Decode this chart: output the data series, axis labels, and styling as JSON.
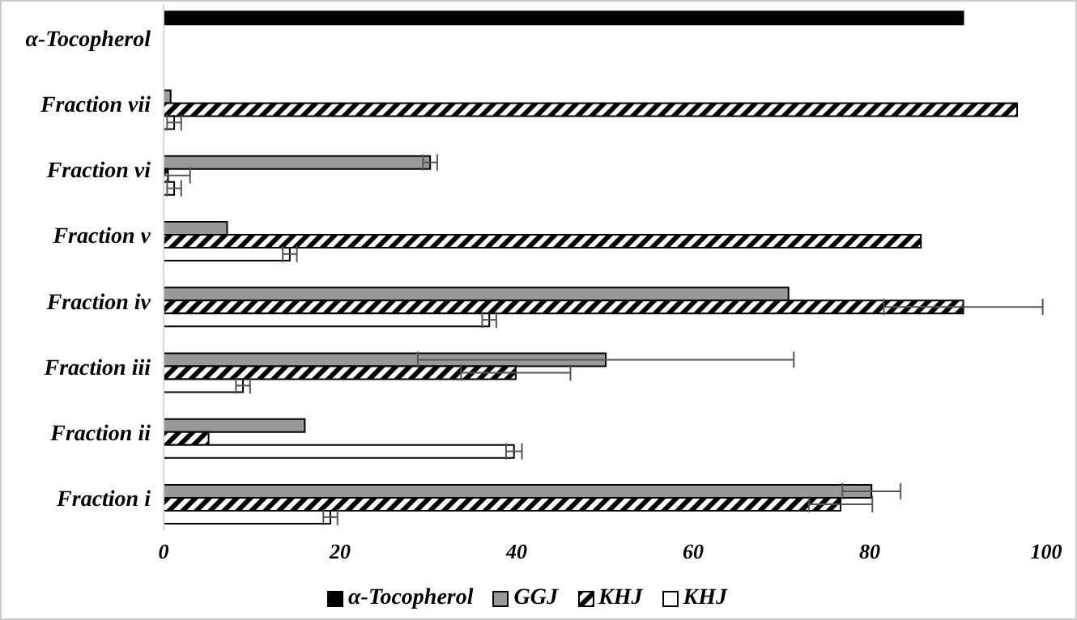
{
  "chart_data": {
    "type": "bar",
    "orientation": "horizontal",
    "categories": [
      "α-Tocopherol",
      "Fraction vii",
      "Fraction vi",
      "Fraction v",
      "Fraction iv",
      "Fraction iii",
      "Fraction ii",
      "Fraction i"
    ],
    "series": [
      {
        "name": "α-Tocopherol",
        "color": "#000000",
        "values": [
          90.6,
          null,
          null,
          null,
          null,
          null,
          null,
          null
        ]
      },
      {
        "name": "GGJ",
        "color": "#999999",
        "values": [
          null,
          0.8,
          30.2,
          7.2,
          70.8,
          50.1,
          16.0,
          80.2
        ],
        "errors": [
          null,
          null,
          0.8,
          null,
          null,
          21.3,
          null,
          3.3
        ]
      },
      {
        "name": "KHJ",
        "color": "#000000",
        "values": [
          null,
          96.7,
          0.5,
          85.8,
          90.6,
          39.9,
          5.1,
          76.7
        ],
        "errors": [
          null,
          null,
          [
            0,
            3
          ],
          null,
          9,
          6.2,
          null,
          3.6
        ]
      },
      {
        "name": "KHJ",
        "color": "#ffffff",
        "values": [
          null,
          1.2,
          1.2,
          14.3,
          36.9,
          9.0,
          39.7,
          18.9
        ],
        "errors": [
          null,
          0.8,
          0.8,
          0.8,
          0.8,
          0.8,
          0.9,
          0.8
        ]
      }
    ],
    "xlim": [
      0,
      100
    ],
    "xticks": [
      0,
      20,
      40,
      60,
      80,
      100
    ],
    "grid": false,
    "legend": "bottom"
  }
}
